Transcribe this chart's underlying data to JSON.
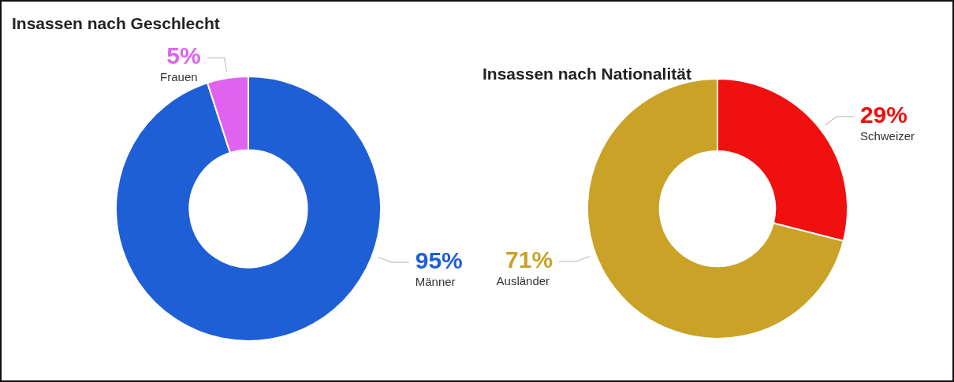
{
  "chart_data": [
    {
      "type": "donut",
      "title": "Insassen nach Geschlecht",
      "categories": [
        "Männer",
        "Frauen"
      ],
      "values": [
        95,
        5
      ],
      "colors": [
        "#1f5fd6",
        "#e063f0"
      ],
      "value_labels": [
        "95%",
        "5%"
      ],
      "legend": false
    },
    {
      "type": "donut",
      "title": "Insassen nach Nationalität",
      "categories": [
        "Schweizer",
        "Ausländer"
      ],
      "values": [
        29,
        71
      ],
      "colors": [
        "#f01010",
        "#c9a227"
      ],
      "value_labels": [
        "29%",
        "71%"
      ],
      "legend": false
    }
  ]
}
